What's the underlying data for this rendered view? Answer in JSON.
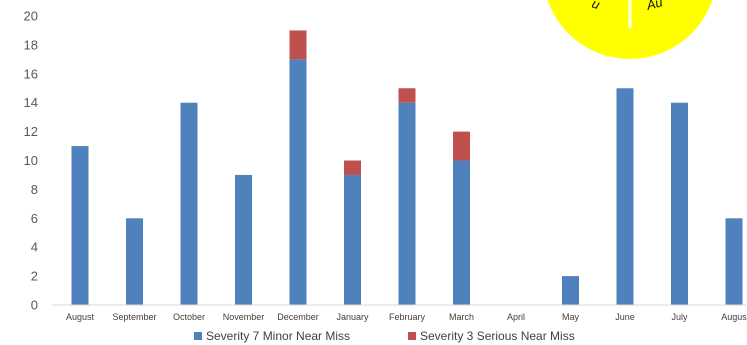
{
  "chart_data": {
    "type": "bar",
    "stacked": true,
    "categories": [
      "August",
      "September",
      "October",
      "November",
      "December",
      "January",
      "February",
      "March",
      "April",
      "May",
      "June",
      "July",
      "Augus"
    ],
    "series": [
      {
        "name": "Severity 7 Minor Near Miss",
        "color": "#4f81bd",
        "values": [
          11,
          6,
          14,
          9,
          17,
          9,
          14,
          10,
          0,
          2,
          15,
          14,
          6
        ]
      },
      {
        "name": "Severity 3 Serious Near Miss",
        "color": "#c0504d",
        "values": [
          0,
          0,
          0,
          0,
          2,
          1,
          1,
          2,
          0,
          0,
          0,
          0,
          0
        ]
      }
    ],
    "ylim": [
      0,
      20
    ],
    "yticks": [
      0,
      2,
      4,
      6,
      8,
      10,
      12,
      14,
      16,
      18,
      20
    ],
    "grid": false,
    "legend": "bottom"
  },
  "badge": {
    "color": "#ffff00",
    "left_text": "u",
    "right_text": "Au"
  }
}
